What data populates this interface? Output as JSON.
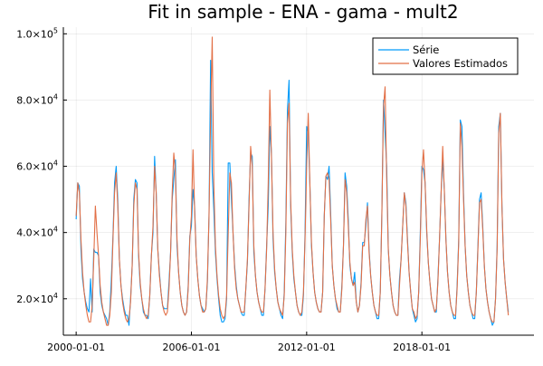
{
  "chart_data": {
    "type": "line",
    "title": "Fit in sample - ENA - gama - mult2",
    "xlabel": "",
    "ylabel": "",
    "x_start": "2000-01",
    "x_frequency": "monthly",
    "x_ticks": [
      "2000-01-01",
      "2006-01-01",
      "2012-01-01",
      "2018-01-01"
    ],
    "y_ticks": [
      {
        "value": 20000,
        "base": "2.0×10",
        "exp": "4"
      },
      {
        "value": 40000,
        "base": "4.0×10",
        "exp": "4"
      },
      {
        "value": 60000,
        "base": "6.0×10",
        "exp": "4"
      },
      {
        "value": 80000,
        "base": "8.0×10",
        "exp": "4"
      },
      {
        "value": 100000,
        "base": "1.0×10",
        "exp": "5"
      }
    ],
    "xlim": [
      "1999-05",
      "2023-11"
    ],
    "ylim": [
      9000,
      102000
    ],
    "grid": true,
    "legend_position": "top-right",
    "series": [
      {
        "name": "Série",
        "color": "#009af9",
        "values": [
          44000,
          55000,
          54000,
          35000,
          26000,
          22000,
          19000,
          17000,
          16000,
          26000,
          16000,
          35000,
          34000,
          34000,
          33000,
          22000,
          18000,
          16000,
          15000,
          14000,
          12000,
          16000,
          26000,
          39000,
          55000,
          60000,
          50000,
          32000,
          24000,
          20000,
          17000,
          15000,
          15000,
          12000,
          20000,
          30000,
          50000,
          56000,
          55000,
          33000,
          24000,
          20000,
          16000,
          15000,
          15000,
          14000,
          21000,
          33000,
          40000,
          63000,
          52000,
          35000,
          28000,
          22000,
          18000,
          17000,
          17000,
          17000,
          25000,
          34000,
          50000,
          56000,
          62000,
          36000,
          28000,
          22000,
          18000,
          16000,
          15000,
          16000,
          24000,
          39000,
          42000,
          53000,
          48000,
          33000,
          26000,
          21000,
          18000,
          17000,
          16000,
          17000,
          25000,
          45000,
          92000,
          58000,
          47000,
          34000,
          26000,
          20000,
          15000,
          13000,
          13000,
          14000,
          20000,
          61000,
          61000,
          50000,
          40000,
          30000,
          24000,
          20000,
          18000,
          16000,
          15000,
          15000,
          23000,
          31000,
          50000,
          64000,
          63000,
          34000,
          27000,
          22000,
          19000,
          17000,
          15000,
          15000,
          23000,
          36000,
          48000,
          72000,
          64000,
          38000,
          28000,
          23000,
          19000,
          17000,
          15000,
          14000,
          22000,
          43000,
          77000,
          86000,
          48000,
          34000,
          26000,
          22000,
          18000,
          16000,
          15000,
          15000,
          21000,
          40000,
          72000,
          70000,
          55000,
          36000,
          28000,
          22000,
          19000,
          17000,
          16000,
          16000,
          22000,
          45000,
          57000,
          56000,
          60000,
          46000,
          30000,
          24000,
          20000,
          17000,
          16000,
          16000,
          24000,
          36000,
          58000,
          54000,
          44000,
          30000,
          26000,
          24000,
          28000,
          19000,
          16000,
          18000,
          25000,
          37000,
          37000,
          42000,
          49000,
          35000,
          27000,
          22000,
          18000,
          16000,
          14000,
          14000,
          22000,
          46000,
          80000,
          70000,
          60000,
          35000,
          27000,
          22000,
          18000,
          16000,
          15000,
          15000,
          26000,
          32000,
          42000,
          52000,
          49000,
          38000,
          28000,
          22000,
          17000,
          15000,
          13000,
          14000,
          22000,
          40000,
          60000,
          59000,
          55000,
          40000,
          31000,
          25000,
          20000,
          18000,
          16000,
          16000,
          26000,
          38000,
          52000,
          62000,
          53000,
          38000,
          28000,
          22000,
          18000,
          16000,
          14000,
          14000,
          24000,
          38000,
          74000,
          72000,
          52000,
          36000,
          27000,
          22000,
          18000,
          16000,
          14000,
          14000,
          22000,
          36000,
          50000,
          52000,
          42000,
          30000,
          23000,
          19000,
          16000,
          14000,
          12000,
          13000,
          20000,
          36000,
          72000,
          76000,
          48000,
          32000,
          25000,
          20000,
          16000
        ]
      },
      {
        "name": "Valores Estimados",
        "color": "#e26f46",
        "values": [
          45000,
          55000,
          52000,
          38000,
          28000,
          22000,
          18000,
          15000,
          13000,
          13000,
          18000,
          32000,
          48000,
          40000,
          33000,
          24000,
          19000,
          16000,
          14000,
          12000,
          12000,
          15000,
          22000,
          38000,
          52000,
          58000,
          48000,
          32000,
          24000,
          19000,
          16000,
          14000,
          13000,
          14000,
          19000,
          30000,
          48000,
          55000,
          53000,
          34000,
          25000,
          20000,
          17000,
          15000,
          14000,
          15000,
          21000,
          33000,
          42000,
          60000,
          52000,
          35000,
          27000,
          22000,
          18000,
          16000,
          15000,
          16000,
          23000,
          34000,
          52000,
          64000,
          58000,
          38000,
          28000,
          22000,
          18000,
          16000,
          15000,
          16000,
          23000,
          38000,
          45000,
          65000,
          47000,
          33000,
          26000,
          21000,
          18000,
          16000,
          16000,
          17000,
          26000,
          45000,
          75000,
          99000,
          55000,
          36000,
          27000,
          21000,
          17000,
          15000,
          14000,
          15000,
          21000,
          40000,
          58000,
          55000,
          40000,
          29000,
          23000,
          20000,
          18000,
          16000,
          16000,
          16000,
          23000,
          32000,
          48000,
          66000,
          60000,
          36000,
          27000,
          22000,
          19000,
          17000,
          16000,
          16000,
          23000,
          35000,
          55000,
          83000,
          63000,
          40000,
          29000,
          23000,
          19000,
          17000,
          16000,
          15000,
          21000,
          40000,
          73000,
          79000,
          50000,
          35000,
          27000,
          22000,
          18000,
          16000,
          15000,
          16000,
          22000,
          38000,
          60000,
          76000,
          55000,
          37000,
          28000,
          22000,
          19000,
          17000,
          16000,
          16000,
          22000,
          45000,
          57000,
          58000,
          56000,
          44000,
          30000,
          24000,
          20000,
          18000,
          16000,
          16000,
          23000,
          36000,
          56000,
          52000,
          42000,
          31000,
          26000,
          24000,
          25000,
          19000,
          16000,
          18000,
          24000,
          36000,
          36000,
          44000,
          48000,
          34000,
          27000,
          22000,
          18000,
          16000,
          15000,
          15000,
          22000,
          46000,
          78000,
          84000,
          56000,
          35000,
          27000,
          22000,
          18000,
          16000,
          15000,
          15000,
          24000,
          32000,
          42000,
          52000,
          48000,
          37000,
          28000,
          22000,
          17000,
          16000,
          14000,
          15000,
          22000,
          38000,
          58000,
          65000,
          55000,
          41000,
          31000,
          25000,
          20000,
          18000,
          16000,
          17000,
          25000,
          38000,
          52000,
          66000,
          53000,
          38000,
          28000,
          22000,
          18000,
          16000,
          15000,
          15000,
          23000,
          37000,
          73000,
          66000,
          50000,
          36000,
          27000,
          22000,
          18000,
          16000,
          15000,
          15000,
          22000,
          35000,
          49000,
          50000,
          41000,
          30000,
          23000,
          19000,
          16000,
          14000,
          13000,
          13000,
          20000,
          35000,
          70000,
          76000,
          48000,
          32000,
          25000,
          20000,
          15000
        ]
      }
    ]
  }
}
